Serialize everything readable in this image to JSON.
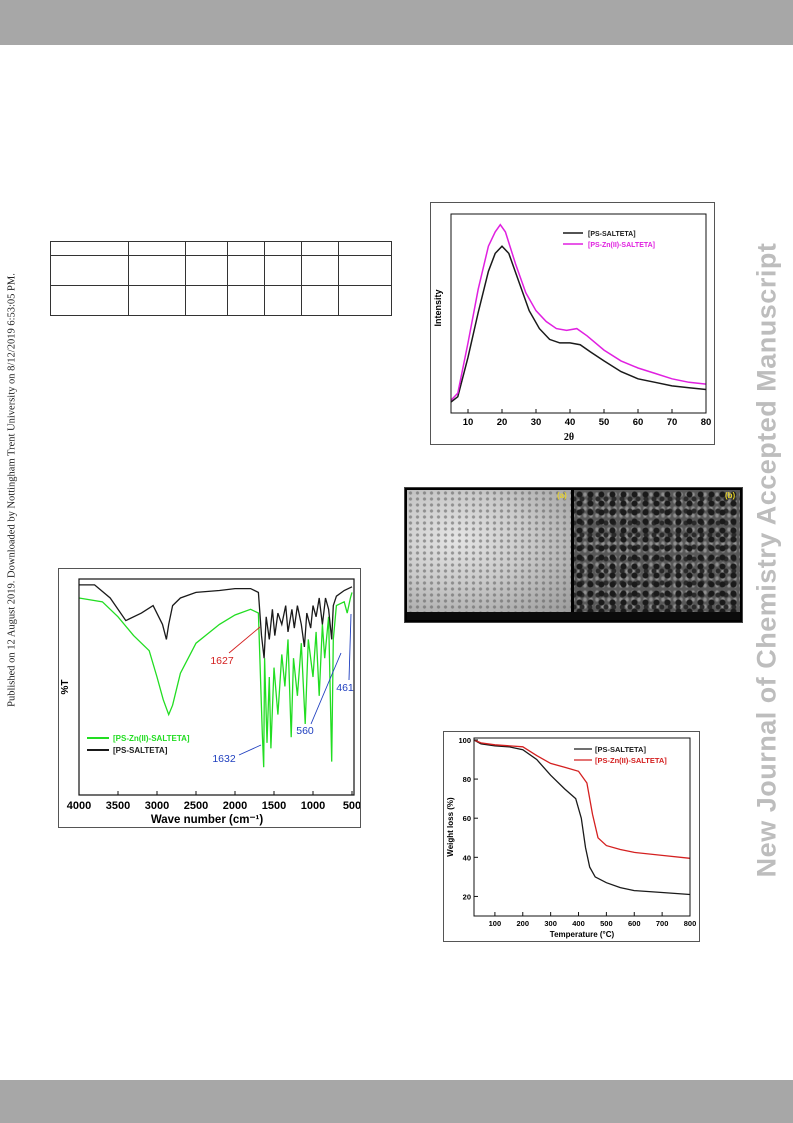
{
  "page": {
    "side_notice": "Published on 12 August 2019. Downloaded by Nottingham Trent University on 8/12/2019 6:53:05 PM.",
    "journal_watermark": "New Journal of Chemistry Accepted Manuscript"
  },
  "table": {
    "rows": [
      [
        "",
        "",
        "",
        "",
        "",
        "",
        ""
      ],
      [
        "",
        "",
        "",
        "",
        "",
        "",
        ""
      ],
      [
        "",
        "",
        "",
        "",
        "",
        "",
        ""
      ]
    ]
  },
  "sem": {
    "panel_a": "(a)",
    "panel_b": "(b)"
  },
  "colors": {
    "black_series": "#1a1a1a",
    "magenta_series": "#e020e0",
    "green_series": "#22dd22",
    "red_series": "#d42020",
    "annot_red": "#d42020",
    "annot_blue": "#1f3fbf"
  },
  "chart_data": [
    {
      "type": "line",
      "id": "ftir",
      "xlabel": "Wave number (cm⁻¹)",
      "ylabel": "%T",
      "xlim": [
        4000,
        500
      ],
      "xticks": [
        "4000",
        "3500",
        "3000",
        "2500",
        "2000",
        "1500",
        "1000",
        "500"
      ],
      "x_tick_values": [
        4000,
        3500,
        3000,
        2500,
        2000,
        1500,
        1000,
        500
      ],
      "legend_position": "bottom-left",
      "series": [
        {
          "name": "[PS-Zn(II)-SALTETA]",
          "color": "#22dd22",
          "points": [
            [
              4000,
              92
            ],
            [
              3700,
              90
            ],
            [
              3500,
              82
            ],
            [
              3300,
              72
            ],
            [
              3100,
              64
            ],
            [
              3000,
              50
            ],
            [
              2920,
              38
            ],
            [
              2850,
              30
            ],
            [
              2800,
              35
            ],
            [
              2700,
              52
            ],
            [
              2500,
              68
            ],
            [
              2200,
              78
            ],
            [
              2000,
              83
            ],
            [
              1800,
              86
            ],
            [
              1700,
              84
            ],
            [
              1650,
              20
            ],
            [
              1632,
              2
            ],
            [
              1620,
              60
            ],
            [
              1590,
              15
            ],
            [
              1560,
              50
            ],
            [
              1540,
              12
            ],
            [
              1500,
              55
            ],
            [
              1450,
              30
            ],
            [
              1400,
              62
            ],
            [
              1360,
              45
            ],
            [
              1320,
              70
            ],
            [
              1280,
              18
            ],
            [
              1250,
              60
            ],
            [
              1200,
              40
            ],
            [
              1150,
              68
            ],
            [
              1100,
              25
            ],
            [
              1060,
              70
            ],
            [
              1000,
              50
            ],
            [
              960,
              74
            ],
            [
              920,
              40
            ],
            [
              880,
              78
            ],
            [
              850,
              60
            ],
            [
              800,
              82
            ],
            [
              760,
              5
            ],
            [
              740,
              70
            ],
            [
              700,
              88
            ],
            [
              600,
              90
            ],
            [
              561,
              84
            ],
            [
              520,
              92
            ],
            [
              500,
              95
            ]
          ]
        },
        {
          "name": "[PS-SALTETA]",
          "color": "#1a1a1a",
          "points": [
            [
              4000,
              99
            ],
            [
              3800,
              99
            ],
            [
              3600,
              92
            ],
            [
              3400,
              80
            ],
            [
              3200,
              84
            ],
            [
              3050,
              88
            ],
            [
              2930,
              78
            ],
            [
              2880,
              70
            ],
            [
              2850,
              78
            ],
            [
              2800,
              88
            ],
            [
              2700,
              92
            ],
            [
              2500,
              95
            ],
            [
              2200,
              96
            ],
            [
              2000,
              97
            ],
            [
              1800,
              97
            ],
            [
              1700,
              95
            ],
            [
              1660,
              72
            ],
            [
              1627,
              60
            ],
            [
              1600,
              82
            ],
            [
              1560,
              70
            ],
            [
              1520,
              86
            ],
            [
              1490,
              72
            ],
            [
              1450,
              84
            ],
            [
              1400,
              78
            ],
            [
              1350,
              88
            ],
            [
              1320,
              74
            ],
            [
              1270,
              86
            ],
            [
              1240,
              76
            ],
            [
              1200,
              88
            ],
            [
              1150,
              78
            ],
            [
              1110,
              66
            ],
            [
              1080,
              84
            ],
            [
              1030,
              76
            ],
            [
              1000,
              88
            ],
            [
              960,
              82
            ],
            [
              920,
              92
            ],
            [
              880,
              78
            ],
            [
              840,
              92
            ],
            [
              800,
              86
            ],
            [
              760,
              70
            ],
            [
              740,
              88
            ],
            [
              700,
              93
            ],
            [
              600,
              96
            ],
            [
              500,
              98
            ]
          ]
        }
      ],
      "annotations": [
        {
          "text": "1627",
          "color": "#d42020"
        },
        {
          "text": "1632",
          "color": "#1f3fbf"
        },
        {
          "text": "560",
          "color": "#1f3fbf"
        },
        {
          "text": "461",
          "color": "#1f3fbf"
        }
      ]
    },
    {
      "type": "line",
      "id": "xrd",
      "xlabel": "2θ",
      "ylabel": "Intensity",
      "xlim": [
        5,
        80
      ],
      "xticks": [
        "10",
        "20",
        "30",
        "40",
        "50",
        "60",
        "70",
        "80"
      ],
      "x_tick_values": [
        10,
        20,
        30,
        40,
        50,
        60,
        70,
        80
      ],
      "legend_position": "top-right",
      "series": [
        {
          "name": "[PS-SALTETA]",
          "color": "#1a1a1a",
          "points": [
            [
              5,
              5
            ],
            [
              7,
              8
            ],
            [
              10,
              30
            ],
            [
              13,
              55
            ],
            [
              16,
              78
            ],
            [
              18,
              88
            ],
            [
              20,
              92
            ],
            [
              22,
              88
            ],
            [
              25,
              72
            ],
            [
              28,
              56
            ],
            [
              31,
              46
            ],
            [
              34,
              40
            ],
            [
              37,
              38
            ],
            [
              40,
              38
            ],
            [
              43,
              37
            ],
            [
              46,
              33
            ],
            [
              50,
              28
            ],
            [
              55,
              22
            ],
            [
              60,
              18
            ],
            [
              65,
              16
            ],
            [
              70,
              14
            ],
            [
              75,
              13
            ],
            [
              80,
              12
            ]
          ]
        },
        {
          "name": "[PS-Zn(II)-SALTETA]",
          "color": "#e020e0",
          "points": [
            [
              5,
              6
            ],
            [
              7,
              10
            ],
            [
              10,
              38
            ],
            [
              13,
              68
            ],
            [
              16,
              92
            ],
            [
              18,
              100
            ],
            [
              19.5,
              104
            ],
            [
              21,
              100
            ],
            [
              24,
              82
            ],
            [
              27,
              66
            ],
            [
              30,
              56
            ],
            [
              33,
              50
            ],
            [
              36,
              46
            ],
            [
              39,
              45
            ],
            [
              42,
              46
            ],
            [
              45,
              42
            ],
            [
              50,
              34
            ],
            [
              55,
              28
            ],
            [
              60,
              24
            ],
            [
              65,
              21
            ],
            [
              70,
              18
            ],
            [
              75,
              16
            ],
            [
              80,
              15
            ]
          ]
        }
      ]
    },
    {
      "type": "line",
      "id": "tga",
      "xlabel": "Temperature (°C)",
      "ylabel": "Weight loss (%)",
      "xlim": [
        25,
        800
      ],
      "ylim": [
        10,
        101
      ],
      "xticks": [
        "100",
        "200",
        "300",
        "400",
        "500",
        "600",
        "700",
        "800"
      ],
      "x_tick_values": [
        100,
        200,
        300,
        400,
        500,
        600,
        700,
        800
      ],
      "yticks": [
        "20",
        "40",
        "60",
        "80",
        "100"
      ],
      "y_tick_values": [
        20,
        40,
        60,
        80,
        100
      ],
      "legend_position": "top-right",
      "series": [
        {
          "name": "[PS-SALTETA]",
          "color": "#1a1a1a",
          "points": [
            [
              25,
              100
            ],
            [
              50,
              98
            ],
            [
              100,
              97
            ],
            [
              150,
              96.5
            ],
            [
              200,
              95
            ],
            [
              250,
              90
            ],
            [
              300,
              82
            ],
            [
              350,
              75
            ],
            [
              390,
              70
            ],
            [
              410,
              60
            ],
            [
              425,
              45
            ],
            [
              440,
              35
            ],
            [
              460,
              30
            ],
            [
              500,
              27
            ],
            [
              550,
              24.5
            ],
            [
              600,
              23
            ],
            [
              700,
              22
            ],
            [
              800,
              21
            ]
          ]
        },
        {
          "name": "[PS-Zn(II)-SALTETA]",
          "color": "#d42020",
          "points": [
            [
              25,
              100
            ],
            [
              50,
              98.5
            ],
            [
              100,
              97.5
            ],
            [
              200,
              96.5
            ],
            [
              250,
              92
            ],
            [
              300,
              88
            ],
            [
              350,
              86
            ],
            [
              400,
              84
            ],
            [
              430,
              78
            ],
            [
              450,
              62
            ],
            [
              470,
              50
            ],
            [
              500,
              46
            ],
            [
              550,
              44
            ],
            [
              600,
              42.5
            ],
            [
              700,
              41
            ],
            [
              800,
              39.5
            ]
          ]
        }
      ]
    }
  ]
}
